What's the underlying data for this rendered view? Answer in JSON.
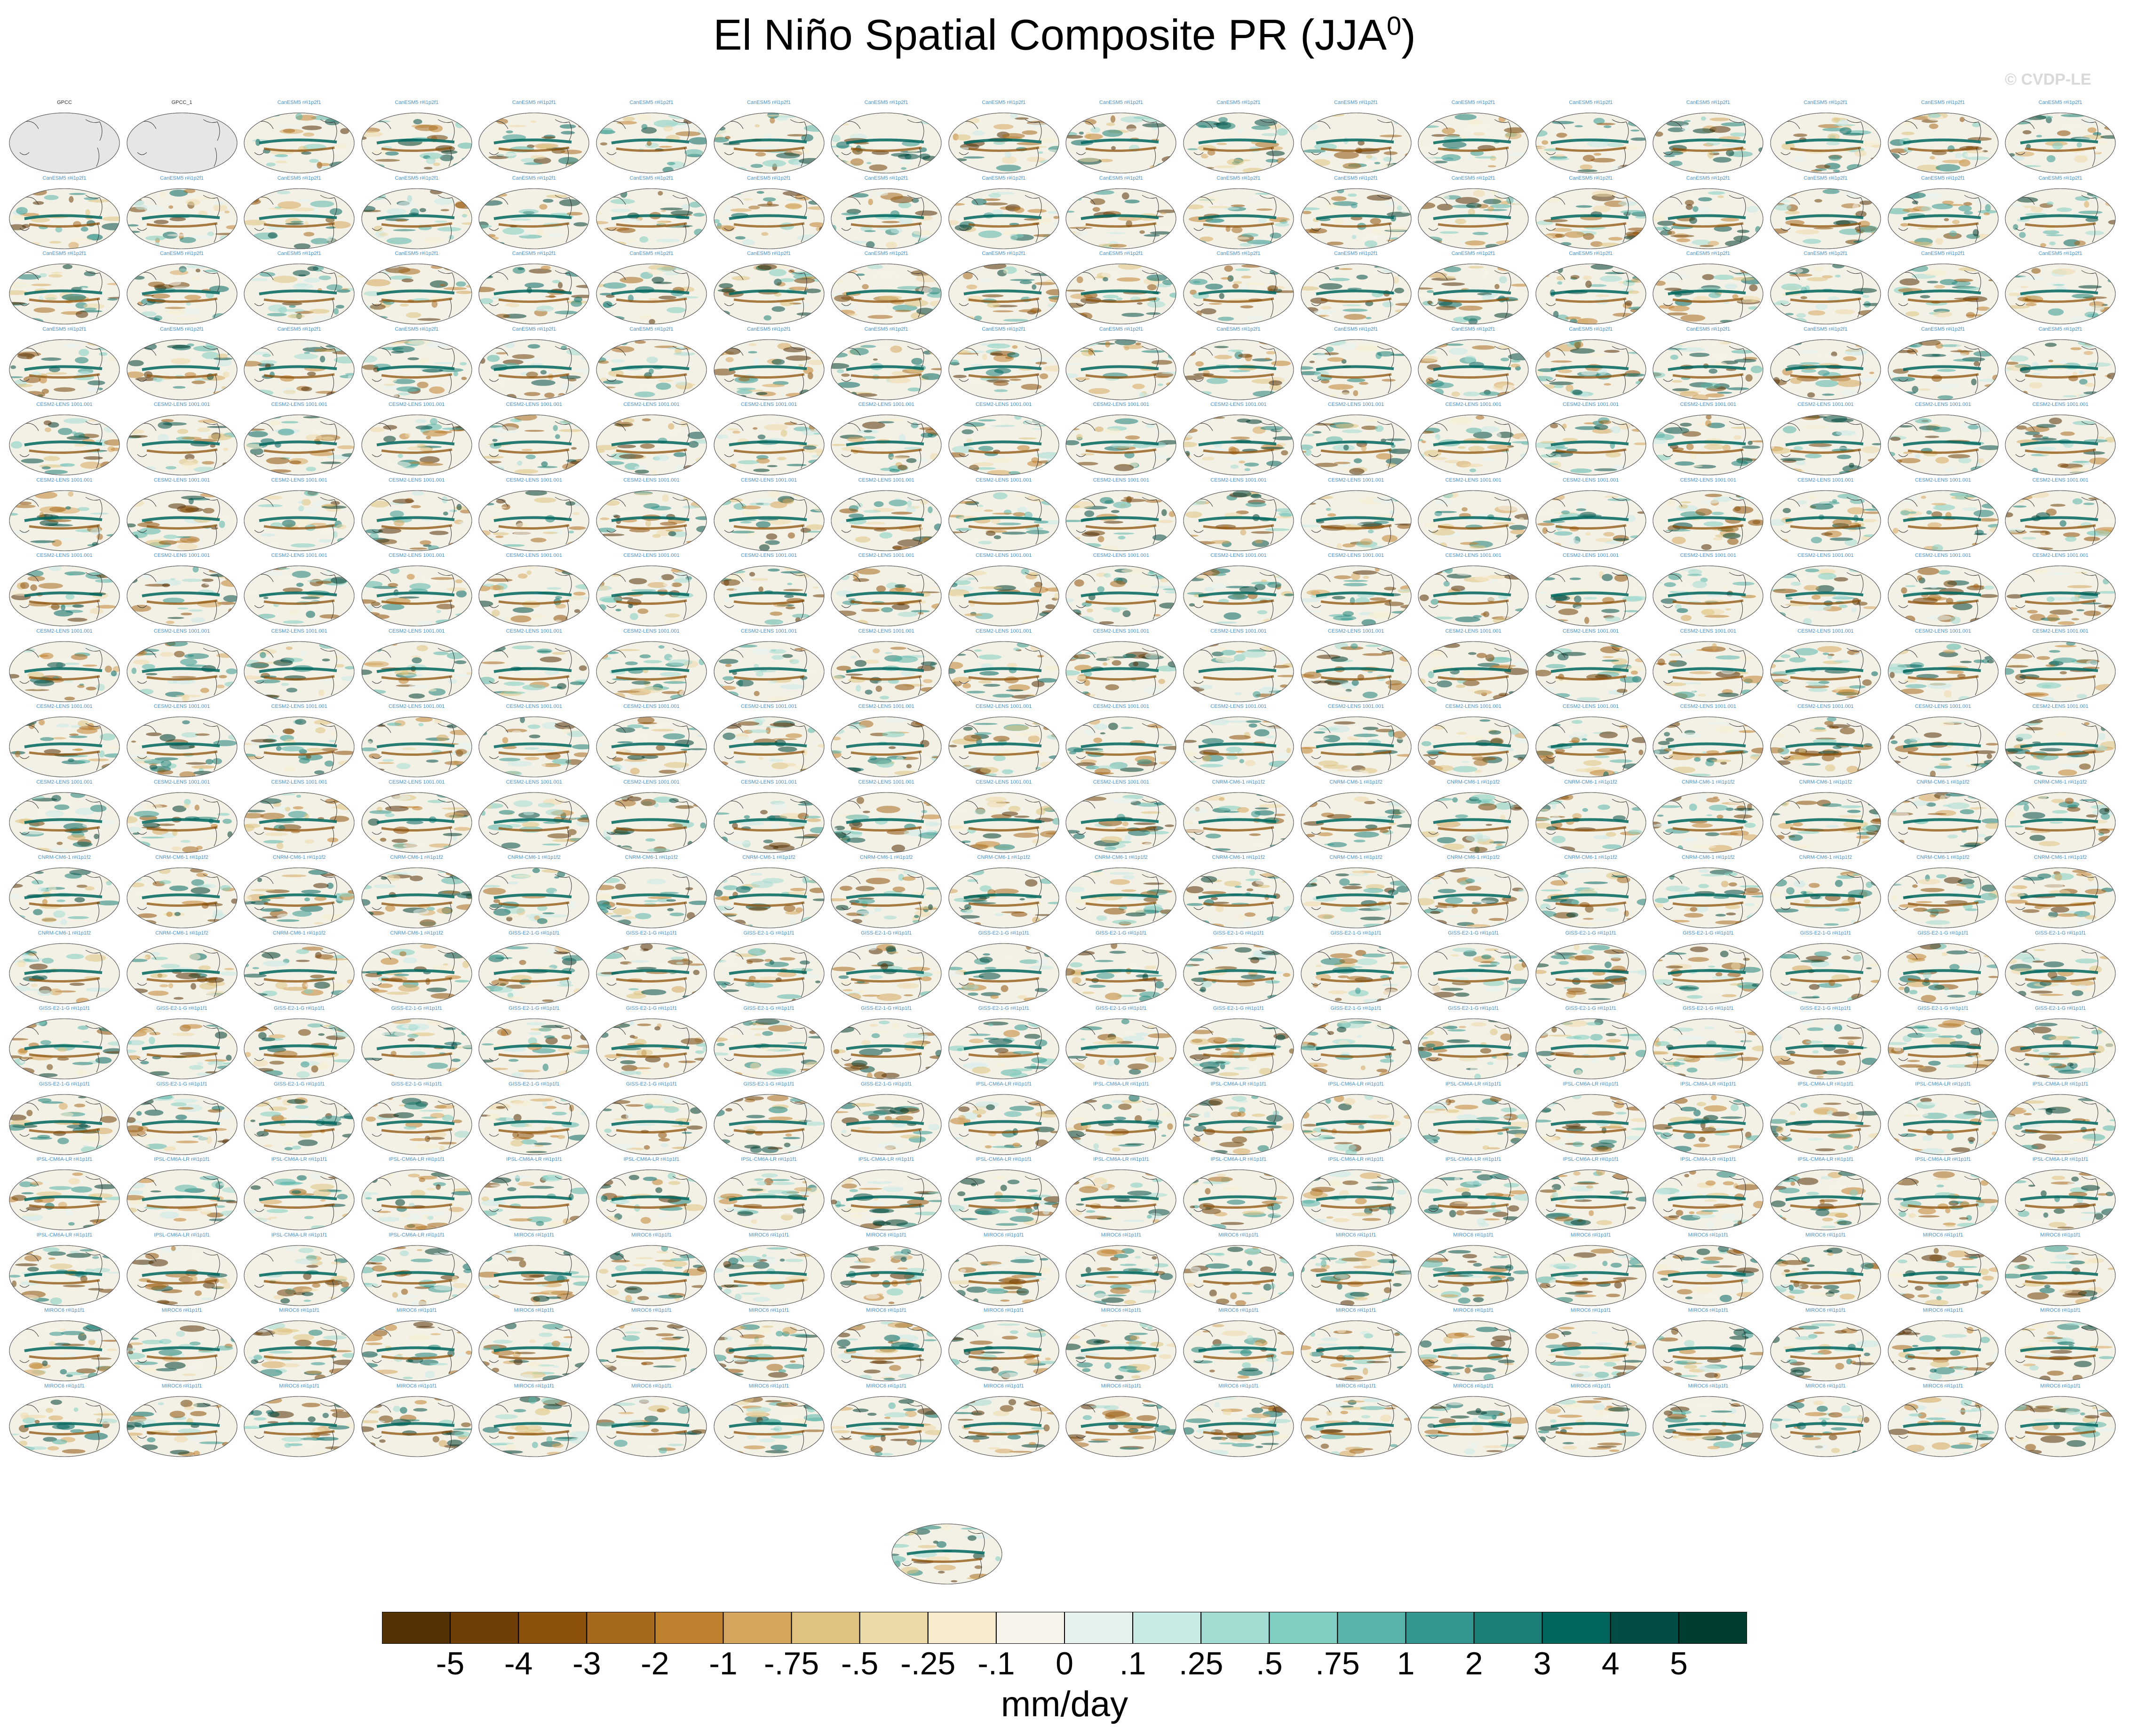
{
  "title_main": "El Niño Spatial Composite PR (JJA",
  "title_sup": "0",
  "title_close": ")",
  "watermark": "© CVDP-LE",
  "chart_data": {
    "type": "heatmap",
    "title": "El Niño Spatial Composite PR (JJA0)",
    "grid": {
      "rows": 18,
      "cols": 18,
      "extra_bottom_panels": 1
    },
    "panel_groups": [
      {
        "label": "GPCC",
        "count": 1
      },
      {
        "label": "GPCC_1",
        "count": 1
      },
      {
        "label": "CanESM5 r#i1p2f1",
        "count": 70
      },
      {
        "label": "CESM2-LENS 1001.001",
        "count": 100
      },
      {
        "label": "CNRM-CM6-1 r#i1p1f2",
        "count": 30
      },
      {
        "label": "GISS-E2-1-G r#i1p1f1",
        "count": 40
      },
      {
        "label": "IPSL-CM6A-LR r#i1p1f1",
        "count": 32
      },
      {
        "label": "MIROC6 r#i1p1f1",
        "count": 50
      }
    ],
    "colorbar": {
      "levels": [
        "-5",
        "-4",
        "-3",
        "-2",
        "-1",
        "-.75",
        "-.5",
        "-.25",
        "-.1",
        "0",
        ".1",
        ".25",
        ".5",
        ".75",
        "1",
        "2",
        "3",
        "4",
        "5"
      ],
      "colors": [
        "#543005",
        "#6f3f08",
        "#8c510a",
        "#a66a1e",
        "#bf812d",
        "#d4a55d",
        "#dfc27d",
        "#ecd9a8",
        "#f6ebcc",
        "#f5f3ea",
        "#e4f1ef",
        "#c7eae5",
        "#a3dbd2",
        "#80cdc1",
        "#5ab4a9",
        "#35978f",
        "#1c7f76",
        "#01665e",
        "#014d44",
        "#003c30"
      ],
      "units": "mm/day"
    }
  }
}
